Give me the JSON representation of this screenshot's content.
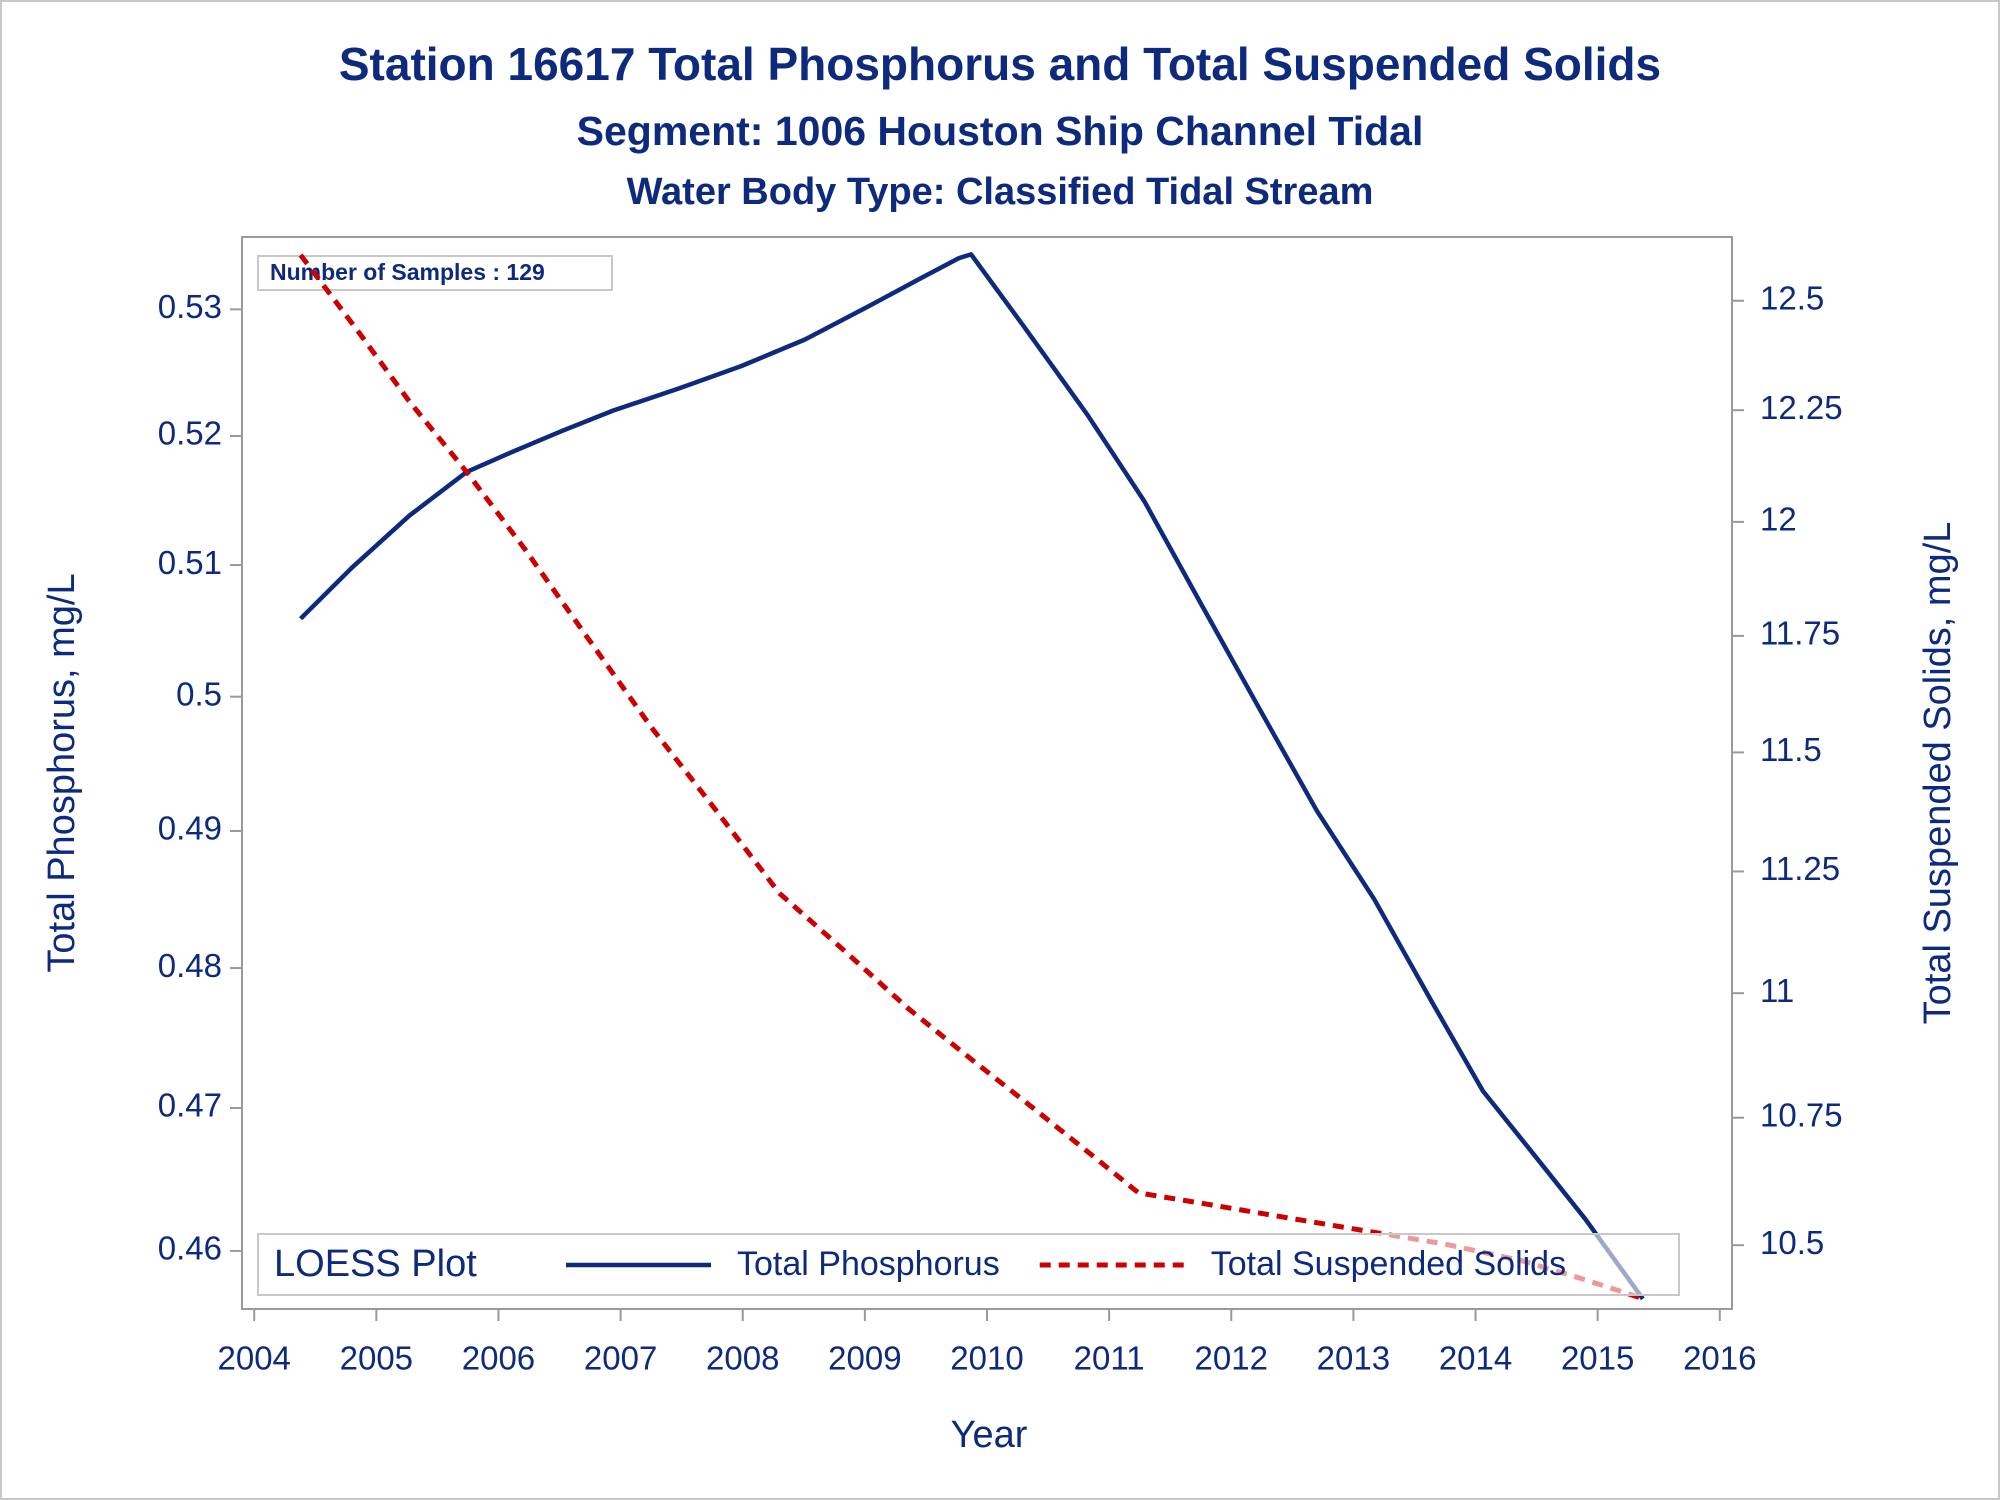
{
  "chart_data": {
    "type": "line",
    "title": "Station 16617  Total Phosphorus and Total Suspended Solids",
    "subtitle": "Segment: 1006  Houston Ship Channel Tidal",
    "subtitle2": "Water Body Type: Classified Tidal Stream",
    "annotation": "Number of Samples : 129",
    "xlabel": "Year",
    "ylabel": "Total Phosphorus, mg/L",
    "y2label": "Total Suspended Solids, mg/L",
    "legend_title": "LOESS Plot",
    "legend": "bottom",
    "log_y": true,
    "log_y2": true,
    "grid": false,
    "xlim": [
      2003.9,
      2016.1
    ],
    "xticks": [
      2004,
      2005,
      2006,
      2007,
      2008,
      2009,
      2010,
      2011,
      2012,
      2013,
      2014,
      2015,
      2016
    ],
    "ylim": [
      0.456,
      0.5358
    ],
    "yticks": [
      0.46,
      0.47,
      0.48,
      0.49,
      0.5,
      0.51,
      0.52,
      0.53
    ],
    "y2lim": [
      10.377,
      12.648
    ],
    "y2ticks": [
      10.5,
      10.75,
      11,
      11.25,
      11.5,
      11.75,
      12,
      12.25,
      12.5
    ],
    "series": [
      {
        "name": "Total Phosphorus",
        "color": "#0d2a7c",
        "dash": "solid",
        "x": [
          2004.38,
          2004.8,
          2005.27,
          2005.74,
          2006.1,
          2006.52,
          2006.94,
          2007.47,
          2007.99,
          2008.51,
          2009.04,
          2009.46,
          2009.77,
          2009.87,
          2010.29,
          2010.82,
          2011.29,
          2011.76,
          2012.23,
          2012.7,
          2013.17,
          2013.64,
          2014.06,
          2014.48,
          2014.9,
          2015.37
        ],
        "values": [
          0.5059,
          0.5098,
          0.5138,
          0.5172,
          0.5187,
          0.5204,
          0.522,
          0.5237,
          0.5255,
          0.5276,
          0.5303,
          0.5325,
          0.5341,
          0.5344,
          0.5288,
          0.5217,
          0.5149,
          0.5069,
          0.4991,
          0.4915,
          0.485,
          0.4776,
          0.4712,
          0.4667,
          0.4622,
          0.4567
        ]
      },
      {
        "name": "Total Suspended Solids",
        "color": "#cc0000",
        "dash": "dashed",
        "axis": "y2",
        "x": [
          2004.38,
          2004.85,
          2005.27,
          2005.74,
          2006.21,
          2006.73,
          2007.25,
          2007.78,
          2008.3,
          2008.83,
          2009.35,
          2009.87,
          2010.4,
          2010.92,
          2011.24,
          2011.87,
          2012.49,
          2013.12,
          2013.75,
          2014.38,
          2014.9,
          2015.37
        ],
        "values": [
          12.606,
          12.43,
          12.27,
          12.111,
          11.942,
          11.746,
          11.554,
          11.378,
          11.205,
          11.087,
          10.97,
          10.867,
          10.765,
          10.664,
          10.602,
          10.577,
          10.552,
          10.527,
          10.502,
          10.47,
          10.433,
          10.397
        ]
      }
    ]
  }
}
